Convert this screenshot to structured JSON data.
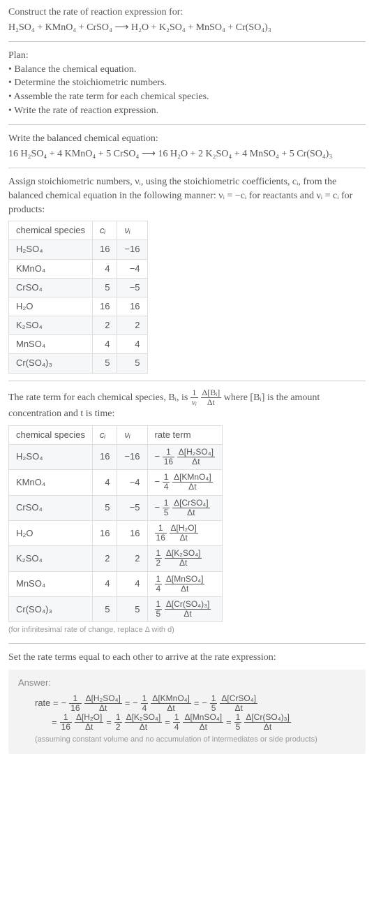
{
  "title": "Construct the rate of reaction expression for:",
  "equation_unbalanced": "H₂SO₄ + KMnO₄ + CrSO₄ ⟶ H₂O + K₂SO₄ + MnSO₄ + Cr(SO₄)₃",
  "plan_title": "Plan:",
  "plan_items": [
    "Balance the chemical equation.",
    "Determine the stoichiometric numbers.",
    "Assemble the rate term for each chemical species.",
    "Write the rate of reaction expression."
  ],
  "balanced_intro": "Write the balanced chemical equation:",
  "equation_balanced": "16 H₂SO₄ + 4 KMnO₄ + 5 CrSO₄ ⟶ 16 H₂O + 2 K₂SO₄ + 4 MnSO₄ + 5 Cr(SO₄)₃",
  "stoich_intro_a": "Assign stoichiometric numbers, νᵢ, using the stoichiometric coefficients, cᵢ, from the balanced chemical equation in the following manner: νᵢ = −cᵢ for reactants and νᵢ = cᵢ for products:",
  "table1": {
    "headers": [
      "chemical species",
      "cᵢ",
      "νᵢ"
    ],
    "rows": [
      [
        "H₂SO₄",
        "16",
        "−16"
      ],
      [
        "KMnO₄",
        "4",
        "−4"
      ],
      [
        "CrSO₄",
        "5",
        "−5"
      ],
      [
        "H₂O",
        "16",
        "16"
      ],
      [
        "K₂SO₄",
        "2",
        "2"
      ],
      [
        "MnSO₄",
        "4",
        "4"
      ],
      [
        "Cr(SO₄)₃",
        "5",
        "5"
      ]
    ]
  },
  "rate_intro_a": "The rate term for each chemical species, Bᵢ, is ",
  "rate_frac_num": "1",
  "rate_frac_den": "νᵢ",
  "rate_frac2_num": "Δ[Bᵢ]",
  "rate_frac2_den": "Δt",
  "rate_intro_b": " where [Bᵢ] is the amount concentration and t is time:",
  "table2": {
    "headers": [
      "chemical species",
      "cᵢ",
      "νᵢ",
      "rate term"
    ],
    "rows": [
      {
        "sp": "H₂SO₄",
        "c": "16",
        "v": "−16",
        "sign": "−",
        "n": "1",
        "d": "16",
        "top": "Δ[H₂SO₄]",
        "bot": "Δt"
      },
      {
        "sp": "KMnO₄",
        "c": "4",
        "v": "−4",
        "sign": "−",
        "n": "1",
        "d": "4",
        "top": "Δ[KMnO₄]",
        "bot": "Δt"
      },
      {
        "sp": "CrSO₄",
        "c": "5",
        "v": "−5",
        "sign": "−",
        "n": "1",
        "d": "5",
        "top": "Δ[CrSO₄]",
        "bot": "Δt"
      },
      {
        "sp": "H₂O",
        "c": "16",
        "v": "16",
        "sign": "",
        "n": "1",
        "d": "16",
        "top": "Δ[H₂O]",
        "bot": "Δt"
      },
      {
        "sp": "K₂SO₄",
        "c": "2",
        "v": "2",
        "sign": "",
        "n": "1",
        "d": "2",
        "top": "Δ[K₂SO₄]",
        "bot": "Δt"
      },
      {
        "sp": "MnSO₄",
        "c": "4",
        "v": "4",
        "sign": "",
        "n": "1",
        "d": "4",
        "top": "Δ[MnSO₄]",
        "bot": "Δt"
      },
      {
        "sp": "Cr(SO₄)₃",
        "c": "5",
        "v": "5",
        "sign": "",
        "n": "1",
        "d": "5",
        "top": "Δ[Cr(SO₄)₃]",
        "bot": "Δt"
      }
    ]
  },
  "hint_text": "(for infinitesimal rate of change, replace Δ with d)",
  "final_intro": "Set the rate terms equal to each other to arrive at the rate expression:",
  "answer_label": "Answer:",
  "answer": {
    "lead": "rate =",
    "terms": [
      {
        "sign": "−",
        "n": "1",
        "d": "16",
        "top": "Δ[H₂SO₄]",
        "bot": "Δt"
      },
      {
        "sign": "= −",
        "n": "1",
        "d": "4",
        "top": "Δ[KMnO₄]",
        "bot": "Δt"
      },
      {
        "sign": "= −",
        "n": "1",
        "d": "5",
        "top": "Δ[CrSO₄]",
        "bot": "Δt"
      }
    ],
    "terms2": [
      {
        "sign": "=",
        "n": "1",
        "d": "16",
        "top": "Δ[H₂O]",
        "bot": "Δt"
      },
      {
        "sign": "=",
        "n": "1",
        "d": "2",
        "top": "Δ[K₂SO₄]",
        "bot": "Δt"
      },
      {
        "sign": "=",
        "n": "1",
        "d": "4",
        "top": "Δ[MnSO₄]",
        "bot": "Δt"
      },
      {
        "sign": "=",
        "n": "1",
        "d": "5",
        "top": "Δ[Cr(SO₄)₃]",
        "bot": "Δt"
      }
    ]
  },
  "answer_note": "(assuming constant volume and no accumulation of intermediates or side products)"
}
